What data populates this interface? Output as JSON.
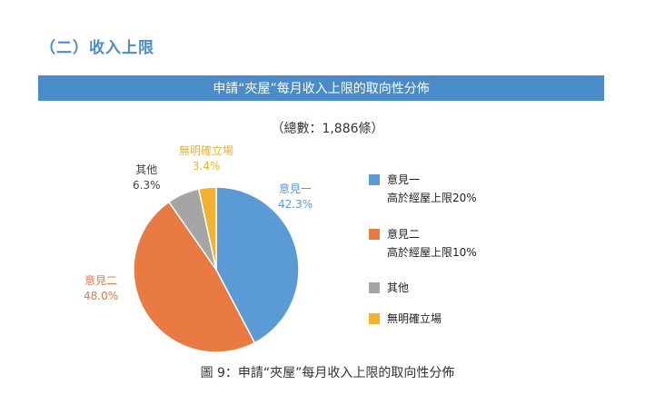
{
  "section_heading": "（二）收入上限",
  "banner_title": "申請“夾屋”每月收入上限的取向性分佈",
  "total_note": "（總數：1,886條）",
  "caption": "圖 9：申請“夾屋”每月收入上限的取向性分佈",
  "colors": {
    "heading": "#4A8BC9",
    "banner_bg": "#4A8BC9",
    "opinion1": "#5B9BD5",
    "opinion2": "#E87A42",
    "other": "#A5A5A5",
    "unclear": "#F2B230"
  },
  "chart_data": {
    "type": "pie",
    "slices": [
      {
        "key": "opinion1",
        "name": "意見一",
        "value": 42.3,
        "label": "42.3%",
        "legend_lines": [
          "意見一",
          "高於經屋上限20%"
        ],
        "color": "#5B9BD5"
      },
      {
        "key": "opinion2",
        "name": "意見二",
        "value": 48.0,
        "label": "48.0%",
        "legend_lines": [
          "意見二",
          "高於經屋上限10%"
        ],
        "color": "#E87A42"
      },
      {
        "key": "other",
        "name": "其他",
        "value": 6.3,
        "label": "6.3%",
        "legend_lines": [
          "其他"
        ],
        "color": "#A5A5A5"
      },
      {
        "key": "unclear",
        "name": "無明確立場",
        "value": 3.4,
        "label": "3.4%",
        "legend_lines": [
          "無明確立場"
        ],
        "color": "#F2B230"
      }
    ],
    "start_angle_deg": 0,
    "direction": "clockwise"
  }
}
